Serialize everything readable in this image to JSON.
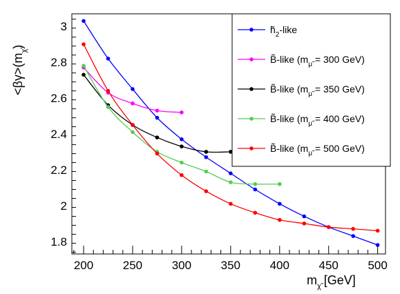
{
  "chart_data": {
    "type": "line",
    "title": "",
    "xlabel_main": "m",
    "xlabel_sub": "χ̃",
    "xlabel_unit": "[GeV]",
    "ylabel_main": "<βγ>(m",
    "ylabel_sub": "χ̃",
    "ylabel_close": ")",
    "xlim": [
      188,
      508
    ],
    "ylim": [
      1.73,
      3.07
    ],
    "x_ticks": [
      200,
      250,
      300,
      350,
      400,
      450,
      500
    ],
    "x_tick_labels": [
      "200",
      "250",
      "300",
      "350",
      "400",
      "450",
      "500"
    ],
    "y_ticks": [
      1.8,
      2.0,
      2.2,
      2.4,
      2.6,
      2.8,
      3.0
    ],
    "y_tick_labels": [
      "1.8",
      "2",
      "2.2",
      "2.4",
      "2.6",
      "2.8",
      "3"
    ],
    "grid": false,
    "legend_position": "top-right",
    "series": [
      {
        "name": "h̃2-like",
        "legend_main": "h̃",
        "legend_sub": "2",
        "legend_rest": "-like",
        "color": "#0000ff",
        "x": [
          200,
          225,
          250,
          275,
          300,
          325,
          350,
          375,
          400,
          425,
          450,
          475,
          500
        ],
        "y": [
          3.03,
          2.82,
          2.65,
          2.49,
          2.37,
          2.27,
          2.18,
          2.09,
          2.01,
          1.94,
          1.88,
          1.83,
          1.78
        ]
      },
      {
        "name": "B̃-like (mμ̃ = 300 GeV)",
        "legend_main": "B̃-like (m",
        "legend_sub": "μ̃",
        "legend_rest": " = 300 GeV)",
        "color": "#ff00ff",
        "x": [
          200,
          225,
          250,
          275,
          300
        ],
        "y": [
          2.77,
          2.63,
          2.57,
          2.53,
          2.52
        ]
      },
      {
        "name": "B̃-like (mμ̃ = 350 GeV)",
        "legend_main": "B̃-like (m",
        "legend_sub": "μ̃",
        "legend_rest": " = 350 GeV)",
        "color": "#000000",
        "x": [
          200,
          225,
          250,
          275,
          300,
          325,
          350
        ],
        "y": [
          2.73,
          2.56,
          2.45,
          2.38,
          2.33,
          2.3,
          2.3
        ]
      },
      {
        "name": "B̃-like (mμ̃ = 400 GeV)",
        "legend_main": "B̃-like (m",
        "legend_sub": "μ̃",
        "legend_rest": " = 400 GeV)",
        "color": "#55cc55",
        "x": [
          200,
          225,
          250,
          275,
          300,
          325,
          350,
          375,
          400
        ],
        "y": [
          2.78,
          2.55,
          2.41,
          2.3,
          2.24,
          2.19,
          2.13,
          2.12,
          2.12
        ]
      },
      {
        "name": "B̃-like (mμ̃ = 500 GeV)",
        "legend_main": "B̃-like (m",
        "legend_sub": "μ̃",
        "legend_rest": " = 500 GeV)",
        "color": "#ff0000",
        "x": [
          200,
          225,
          250,
          275,
          300,
          325,
          350,
          375,
          400,
          425,
          450,
          475,
          500
        ],
        "y": [
          2.9,
          2.64,
          2.45,
          2.29,
          2.17,
          2.08,
          2.01,
          1.96,
          1.92,
          1.9,
          1.88,
          1.87,
          1.86
        ]
      }
    ]
  }
}
